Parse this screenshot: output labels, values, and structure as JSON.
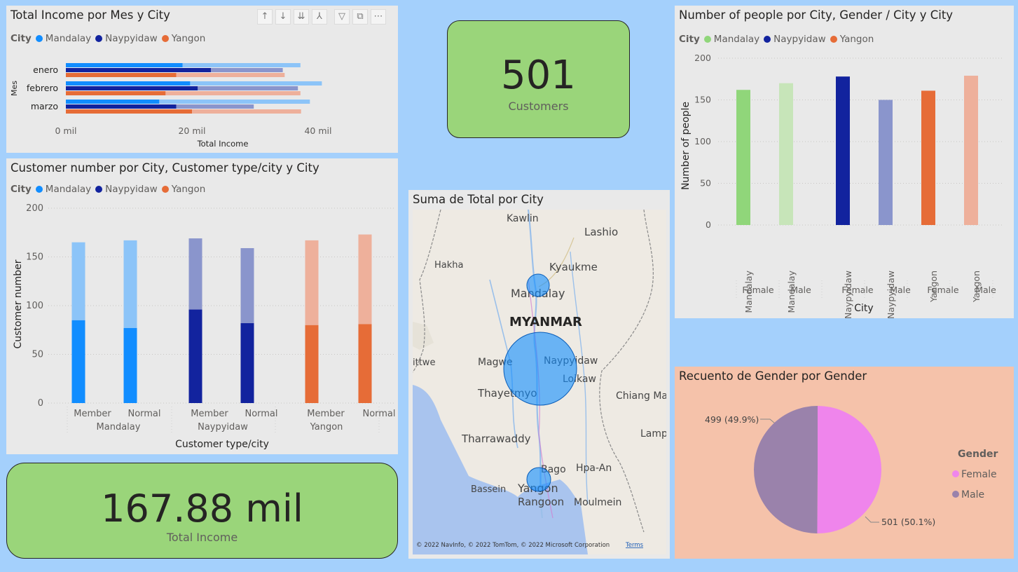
{
  "colors": {
    "mandalay": "#118dff",
    "mandalay_light": "#8cc4f8",
    "naypyidaw": "#12239e",
    "naypyidaw_light": "#8a95cc",
    "yangon": "#e66c37",
    "yangon_light": "#eeb09b",
    "female": "#ef85ec",
    "male": "#9a82ab",
    "gender_m_mandalay": "#90d67a",
    "gender_m_mandalay_light": "#c7e5b9",
    "background": "#a4d0fc",
    "card": "#9ad57a"
  },
  "income_chart": {
    "title": "Total Income por Mes y City",
    "legend_title": "City",
    "legend": [
      "Mandalay",
      "Naypyidaw",
      "Yangon"
    ],
    "y_axis_label": "Mes",
    "x_axis_label": "Total Income",
    "x_ticks": [
      "0 mil",
      "20 mil",
      "40 mil"
    ],
    "toolbar_icons": [
      "arrow-up-icon",
      "arrow-down-icon",
      "double-down-icon",
      "expand-hierarchy-icon",
      "filter-icon",
      "focus-mode-icon",
      "more-options-icon"
    ]
  },
  "customers_card": {
    "value": "501",
    "label": "Customers"
  },
  "total_income_card": {
    "value": "167.88 mil",
    "label": "Total Income"
  },
  "customer_chart": {
    "title": "Customer number por City, Customer type/city y City",
    "legend_title": "City",
    "legend": [
      "Mandalay",
      "Naypyidaw",
      "Yangon"
    ],
    "y_axis_label": "Customer number",
    "x_axis_label": "Customer type/city",
    "y_ticks": [
      "0",
      "50",
      "100",
      "150",
      "200"
    ]
  },
  "map": {
    "title": "Suma de Total por City",
    "country_label": "MYANMAR",
    "places": [
      "Kawlin",
      "Lashio",
      "Hakha",
      "Kyaukme",
      "Mandalay",
      "Magwe",
      "Naypyidaw",
      "Loikaw",
      "Thayetmyo",
      "Chiang Ma",
      "Lamp",
      "Tharrawaddy",
      "Bago",
      "Hpa-An",
      "Bassein",
      "Yangon",
      "Rangoon",
      "Moulmein",
      "ittwe"
    ],
    "copyright": "© 2022 NavInfo, © 2022 TomTom, © 2022 Microsoft Corporation",
    "terms": "Terms"
  },
  "people_chart": {
    "title": "Number of people por City, Gender / City y City",
    "legend_title": "City",
    "legend": [
      "Mandalay",
      "Naypyidaw",
      "Yangon"
    ],
    "y_axis_label": "Number of people",
    "x_axis_label": "City",
    "y_ticks": [
      "0",
      "50",
      "100",
      "150",
      "200"
    ]
  },
  "gender_chart": {
    "title": "Recuento de Gender por Gender",
    "legend_title": "Gender",
    "legend": [
      "Female",
      "Male"
    ],
    "label_male": "499 (49.9%)",
    "label_female": "501 (50.1%)"
  },
  "chart_data": [
    {
      "type": "bar",
      "orientation": "horizontal",
      "title": "Total Income por Mes y City",
      "xlabel": "Total Income",
      "ylabel": "Mes",
      "categories": [
        "enero",
        "febrero",
        "marzo"
      ],
      "xlim": [
        0,
        45000
      ],
      "series": [
        {
          "name": "Mandalay",
          "values": [
            18500,
            19700,
            14800
          ]
        },
        {
          "name": "Naypyidaw",
          "values": [
            23000,
            20900,
            17500
          ]
        },
        {
          "name": "Yangon",
          "values": [
            17500,
            15800,
            20000
          ]
        }
      ],
      "background_series": [
        37200,
        34400,
        34700,
        40600,
        36800,
        37200,
        38700,
        29800,
        37300
      ]
    },
    {
      "type": "bar",
      "stacked": true,
      "title": "Customer number por City, Customer type/city y City",
      "xlabel": "Customer type/city",
      "ylabel": "Customer number",
      "categories": [
        "Member",
        "Normal",
        "Member",
        "Normal",
        "Member",
        "Normal"
      ],
      "groups": [
        "Mandalay",
        "Mandalay",
        "Naypyidaw",
        "Naypyidaw",
        "Yangon",
        "Yangon"
      ],
      "group_labels": [
        "Mandalay",
        "Naypyidaw",
        "Yangon"
      ],
      "ylim": [
        0,
        200
      ],
      "series": [
        {
          "name": "lower",
          "values": [
            85,
            77,
            96,
            82,
            80,
            81
          ]
        },
        {
          "name": "total",
          "values": [
            165,
            167,
            169,
            159,
            167,
            173
          ]
        }
      ]
    },
    {
      "type": "bar",
      "title": "Number of people por City, Gender / City y City",
      "xlabel": "City",
      "ylabel": "Number of people",
      "categories": [
        "Mandalay",
        "Mandalay",
        "Naypyidaw",
        "Naypyidaw",
        "Yangon",
        "Yangon"
      ],
      "sub_labels": [
        "Female",
        "Male",
        "Female",
        "Male",
        "Female",
        "Male"
      ],
      "ylim": [
        0,
        200
      ],
      "values": [
        162,
        170,
        178,
        150,
        161,
        179
      ]
    },
    {
      "type": "pie",
      "title": "Recuento de Gender por Gender",
      "labels": [
        "Female",
        "Male"
      ],
      "values": [
        501,
        499
      ]
    },
    {
      "type": "scatter",
      "title": "Suma de Total por City",
      "labels": [
        "Mandalay",
        "Naypyidaw",
        "Yangon"
      ],
      "relative_size": [
        1,
        3.3,
        1.1
      ]
    }
  ]
}
